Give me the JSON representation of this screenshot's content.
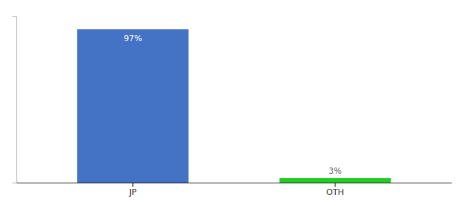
{
  "chart_data": {
    "type": "bar",
    "categories": [
      "JP",
      "OTH"
    ],
    "values": [
      97,
      3
    ],
    "value_labels": [
      "97%",
      "3%"
    ],
    "data_labels": true,
    "colors": [
      "#4472c4",
      "#22cc22"
    ],
    "ylim": [
      0,
      105
    ],
    "yticks": [],
    "tick_labels": "x",
    "grid": false
  }
}
